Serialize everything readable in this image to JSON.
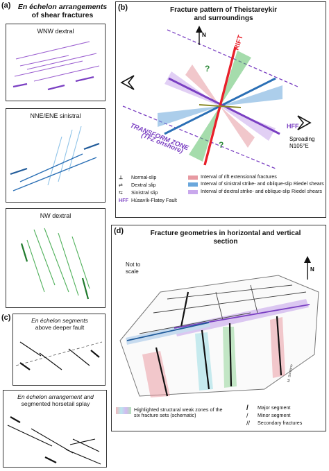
{
  "panel_a": {
    "label": "(a)",
    "title_line1": "En échelon arrangements",
    "title_line2": "of shear fractures",
    "boxes": [
      "WNW dextral",
      "NNE/ENE sinistral",
      "NW dextral"
    ]
  },
  "panel_b": {
    "label": "(b)",
    "title_line1": "Fracture pattern of Theistareykir",
    "title_line2": "and surroundings",
    "north": "N",
    "rift": "RIFT",
    "transform_line1": "TRANSFORM ZONE",
    "transform_line2": "(TFZ onshore)",
    "hff": "HFF",
    "spreading_line1": "Spreading",
    "spreading_line2": "N105°E",
    "question": "?",
    "legend_left": [
      "Normal-slip",
      "Dextral slip",
      "Sinistral slip",
      "Húsavík-Flatey Fault"
    ],
    "legend_hff_abbr": "HFF",
    "legend_right": [
      "Interval of rift extensional fractures",
      "Interval of sinistral strike- and oblique-slip Riedel shears",
      "Interval of dextral strike- and oblique-slip Riedel shears"
    ],
    "colors": {
      "rift": "#e8202a",
      "sinistral": "#2a6fb5",
      "dextral": "#7a3fc2",
      "green": "#2e8b3a"
    }
  },
  "panel_c": {
    "label": "(c)",
    "box1_line1": "En échelon segments",
    "box1_line2": "above deeper fault",
    "box2_line1": "En échelon arrangement and",
    "box2_line2": "segmented horsetail splay"
  },
  "panel_d": {
    "label": "(d)",
    "title_line1": "Fracture geometries in horizontal and vertical",
    "title_line2": "section",
    "not_to_scale_line1": "Not to",
    "not_to_scale_line2": "scale",
    "north": "N",
    "scale_note": "M. Sordano",
    "legend_left_line1": "Highlighted structural weak zones of the",
    "legend_left_line2": "six fracture sets (schematic)",
    "legend_right": [
      "Major segment",
      "Minor segment",
      "Secondary fractures"
    ]
  }
}
